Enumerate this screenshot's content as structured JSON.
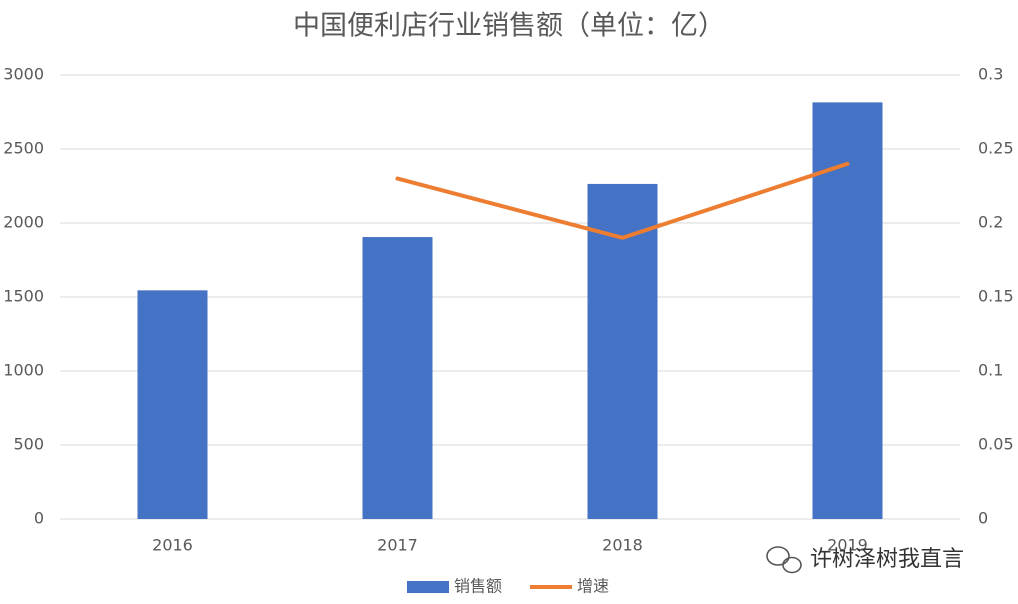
{
  "chart_data": {
    "type": "bar",
    "title": "中国便利店行业销售额（单位：亿）",
    "categories": [
      "2016",
      "2017",
      "2018",
      "2019"
    ],
    "series": [
      {
        "name": "销售额",
        "type": "bar",
        "color": "#4472c4",
        "values": [
          1545,
          1905,
          2264,
          2815
        ]
      },
      {
        "name": "增速",
        "type": "line",
        "axis": "y2",
        "color": "#ed7d31",
        "values": [
          null,
          0.23,
          0.19,
          0.24
        ]
      }
    ],
    "ylim": [
      0,
      3000
    ],
    "yticks": [
      0,
      500,
      1000,
      1500,
      2000,
      2500,
      3000
    ],
    "y2lim": [
      0,
      0.3
    ],
    "y2ticks": [
      0,
      0.05,
      0.1,
      0.15,
      0.2,
      0.25,
      0.3
    ],
    "grid": true,
    "legend": "bottom",
    "annotation": "许树泽树我直言"
  }
}
